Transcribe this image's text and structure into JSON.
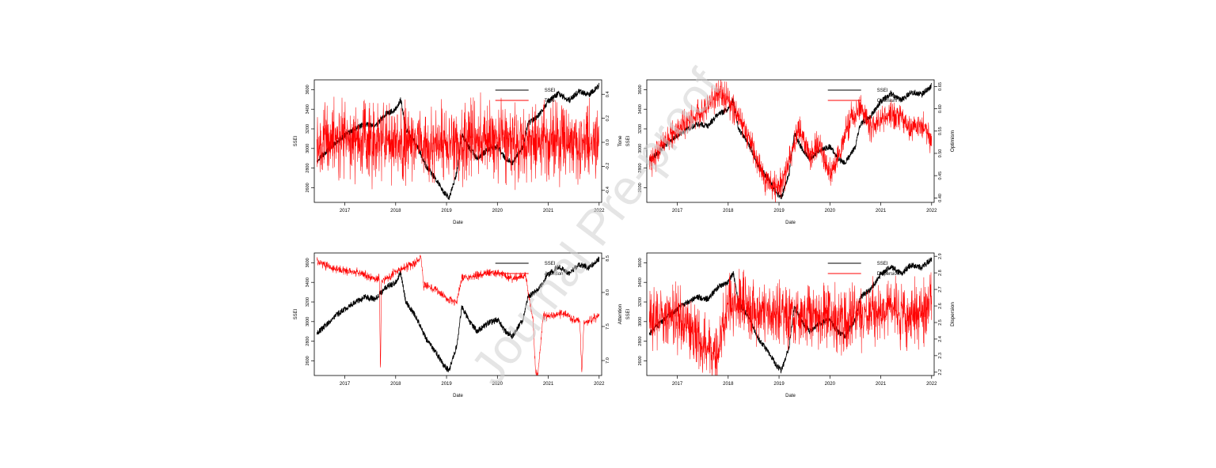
{
  "watermark": "Journal Pre-proof",
  "colors": {
    "ssei": "#000000",
    "sentiment": "#ff0000",
    "axis": "#000000",
    "watermark": "#c8c8c8"
  },
  "chart_data": [
    {
      "type": "line",
      "xlabel": "Date",
      "ylabel_left": "SSEI",
      "ylabel_right": "Tone",
      "x_ticks": [
        "2017",
        "2018",
        "2019",
        "2020",
        "2021",
        "2022"
      ],
      "x_range": [
        2016.4,
        2022.05
      ],
      "y_left_ticks": [
        "2600",
        "2800",
        "3000",
        "3200",
        "3400",
        "3600"
      ],
      "y_left_range": [
        2450,
        3700
      ],
      "y_right_ticks": [
        "-0.4",
        "-0.2",
        "0.0",
        "0.2",
        "0.4"
      ],
      "y_right_range": [
        -0.5,
        0.52
      ],
      "legend": [
        "SSEI",
        "Tone"
      ],
      "legend_position": "top-right",
      "series": [
        {
          "name": "SSEI",
          "color": "#000000",
          "axis": "left",
          "x": [
            2016.45,
            2016.6,
            2016.8,
            2017.0,
            2017.2,
            2017.4,
            2017.6,
            2017.8,
            2018.0,
            2018.1,
            2018.2,
            2018.4,
            2018.6,
            2018.8,
            2018.95,
            2019.05,
            2019.2,
            2019.3,
            2019.45,
            2019.6,
            2019.8,
            2020.0,
            2020.15,
            2020.3,
            2020.5,
            2020.6,
            2020.8,
            2021.0,
            2021.2,
            2021.4,
            2021.6,
            2021.8,
            2022.0
          ],
          "values": [
            2880,
            2950,
            3050,
            3130,
            3200,
            3250,
            3230,
            3350,
            3400,
            3500,
            3200,
            3050,
            2820,
            2680,
            2550,
            2500,
            2750,
            3150,
            3000,
            2900,
            2980,
            3020,
            2900,
            2850,
            3020,
            3250,
            3330,
            3480,
            3560,
            3490,
            3580,
            3550,
            3640
          ]
        },
        {
          "name": "Tone",
          "color": "#ff0000",
          "axis": "right",
          "x": [
            2016.45,
            2017.0,
            2017.5,
            2018.0,
            2018.5,
            2019.0,
            2019.5,
            2020.0,
            2020.5,
            2021.0,
            2021.5,
            2022.0
          ],
          "values": [
            0.0,
            0.02,
            0.0,
            -0.02,
            0.01,
            -0.03,
            0.0,
            0.01,
            -0.01,
            0.02,
            0.0,
            0.01
          ]
        }
      ]
    },
    {
      "type": "line",
      "xlabel": "Date",
      "ylabel_left": "SSEI",
      "ylabel_right": "Optimism",
      "x_ticks": [
        "2017",
        "2018",
        "2019",
        "2020",
        "2021",
        "2022"
      ],
      "x_range": [
        2016.4,
        2022.05
      ],
      "y_left_ticks": [
        "2600",
        "2800",
        "3000",
        "3200",
        "3400",
        "3600"
      ],
      "y_left_range": [
        2450,
        3700
      ],
      "y_right_ticks": [
        "0.40",
        "0.45",
        "0.50",
        "0.55",
        "0.60",
        "0.65"
      ],
      "y_right_range": [
        0.39,
        0.665
      ],
      "legend": [
        "SSEI",
        "Optimism"
      ],
      "legend_position": "top-right",
      "series": [
        {
          "name": "SSEI",
          "color": "#000000",
          "axis": "left",
          "x": [
            2016.45,
            2016.6,
            2016.8,
            2017.0,
            2017.2,
            2017.4,
            2017.6,
            2017.8,
            2018.0,
            2018.1,
            2018.2,
            2018.4,
            2018.6,
            2018.8,
            2018.95,
            2019.05,
            2019.2,
            2019.3,
            2019.45,
            2019.6,
            2019.8,
            2020.0,
            2020.15,
            2020.3,
            2020.5,
            2020.6,
            2020.8,
            2021.0,
            2021.2,
            2021.4,
            2021.6,
            2021.8,
            2022.0
          ],
          "values": [
            2880,
            2950,
            3050,
            3130,
            3200,
            3250,
            3230,
            3350,
            3400,
            3500,
            3200,
            3050,
            2820,
            2680,
            2550,
            2500,
            2750,
            3150,
            3000,
            2900,
            2980,
            3020,
            2900,
            2850,
            3020,
            3250,
            3330,
            3480,
            3560,
            3490,
            3580,
            3550,
            3640
          ]
        },
        {
          "name": "Optimism",
          "color": "#ff0000",
          "axis": "right",
          "x": [
            2016.45,
            2016.7,
            2017.0,
            2017.3,
            2017.6,
            2017.8,
            2018.0,
            2018.2,
            2018.4,
            2018.6,
            2018.8,
            2019.0,
            2019.2,
            2019.4,
            2019.6,
            2019.8,
            2020.0,
            2020.2,
            2020.4,
            2020.6,
            2020.8,
            2021.0,
            2021.2,
            2021.4,
            2021.6,
            2021.8,
            2022.0
          ],
          "values": [
            0.47,
            0.52,
            0.55,
            0.58,
            0.6,
            0.64,
            0.62,
            0.58,
            0.54,
            0.47,
            0.43,
            0.42,
            0.48,
            0.56,
            0.5,
            0.52,
            0.45,
            0.5,
            0.58,
            0.6,
            0.56,
            0.57,
            0.59,
            0.58,
            0.55,
            0.57,
            0.53
          ]
        }
      ]
    },
    {
      "type": "line",
      "xlabel": "Date",
      "ylabel_left": "SSEI",
      "ylabel_right": "Attention",
      "x_ticks": [
        "2017",
        "2018",
        "2019",
        "2020",
        "2021",
        "2022"
      ],
      "x_range": [
        2016.4,
        2022.05
      ],
      "y_left_ticks": [
        "2600",
        "2800",
        "3000",
        "3200",
        "3400",
        "3600"
      ],
      "y_left_range": [
        2450,
        3700
      ],
      "y_right_ticks": [
        "7.0",
        "7.5",
        "8.0",
        "8.5"
      ],
      "y_right_range": [
        6.78,
        8.58
      ],
      "legend": [
        "SSEI",
        "Attention"
      ],
      "legend_position": "top-right",
      "series": [
        {
          "name": "SSEI",
          "color": "#000000",
          "axis": "left",
          "x": [
            2016.45,
            2016.6,
            2016.8,
            2017.0,
            2017.2,
            2017.4,
            2017.6,
            2017.8,
            2018.0,
            2018.1,
            2018.2,
            2018.4,
            2018.6,
            2018.8,
            2018.95,
            2019.05,
            2019.2,
            2019.3,
            2019.45,
            2019.6,
            2019.8,
            2020.0,
            2020.15,
            2020.3,
            2020.5,
            2020.6,
            2020.8,
            2021.0,
            2021.2,
            2021.4,
            2021.6,
            2021.8,
            2022.0
          ],
          "values": [
            2880,
            2950,
            3050,
            3130,
            3200,
            3250,
            3230,
            3350,
            3400,
            3500,
            3200,
            3050,
            2820,
            2680,
            2550,
            2500,
            2750,
            3150,
            3000,
            2900,
            2980,
            3020,
            2900,
            2850,
            3020,
            3250,
            3330,
            3480,
            3560,
            3490,
            3580,
            3550,
            3640
          ]
        },
        {
          "name": "Attention",
          "color": "#ff0000",
          "axis": "right",
          "x": [
            2016.45,
            2016.8,
            2017.2,
            2017.6,
            2017.68,
            2017.7,
            2017.72,
            2018.0,
            2018.3,
            2018.5,
            2018.55,
            2018.8,
            2019.0,
            2019.2,
            2019.3,
            2019.6,
            2020.0,
            2020.3,
            2020.55,
            2020.7,
            2020.75,
            2020.8,
            2020.9,
            2021.0,
            2021.3,
            2021.5,
            2021.62,
            2021.66,
            2021.7,
            2022.0
          ],
          "values": [
            8.45,
            8.35,
            8.3,
            8.2,
            8.2,
            6.82,
            8.15,
            8.3,
            8.4,
            8.5,
            8.1,
            8.05,
            7.9,
            7.85,
            8.2,
            8.25,
            8.3,
            8.2,
            8.25,
            7.6,
            6.82,
            6.82,
            7.65,
            7.65,
            7.7,
            7.6,
            7.6,
            6.82,
            7.55,
            7.65
          ]
        }
      ]
    },
    {
      "type": "line",
      "xlabel": "Date",
      "ylabel_left": "SSEI",
      "ylabel_right": "Dispersion",
      "x_ticks": [
        "2017",
        "2018",
        "2019",
        "2020",
        "2021",
        "2022"
      ],
      "x_range": [
        2016.4,
        2022.05
      ],
      "y_left_ticks": [
        "2600",
        "2800",
        "3000",
        "3200",
        "3400",
        "3600"
      ],
      "y_left_range": [
        2450,
        3700
      ],
      "y_right_ticks": [
        "2.2",
        "2.3",
        "2.4",
        "2.5",
        "2.6",
        "2.7",
        "2.8",
        "2.9"
      ],
      "y_right_range": [
        2.18,
        2.92
      ],
      "legend": [
        "SSEI",
        "Dispersion"
      ],
      "legend_position": "top-right",
      "series": [
        {
          "name": "SSEI",
          "color": "#000000",
          "axis": "left",
          "x": [
            2016.45,
            2016.6,
            2016.8,
            2017.0,
            2017.2,
            2017.4,
            2017.6,
            2017.8,
            2018.0,
            2018.1,
            2018.2,
            2018.4,
            2018.6,
            2018.8,
            2018.95,
            2019.05,
            2019.2,
            2019.3,
            2019.45,
            2019.6,
            2019.8,
            2020.0,
            2020.15,
            2020.3,
            2020.5,
            2020.6,
            2020.8,
            2021.0,
            2021.2,
            2021.4,
            2021.6,
            2021.8,
            2022.0
          ],
          "values": [
            2880,
            2950,
            3050,
            3130,
            3200,
            3250,
            3230,
            3350,
            3400,
            3500,
            3200,
            3050,
            2820,
            2680,
            2550,
            2500,
            2750,
            3150,
            3000,
            2900,
            2980,
            3020,
            2900,
            2850,
            3020,
            3250,
            3330,
            3480,
            3560,
            3490,
            3580,
            3550,
            3640
          ]
        },
        {
          "name": "Dispersion",
          "color": "#ff0000",
          "axis": "right",
          "x": [
            2016.45,
            2016.8,
            2017.2,
            2017.5,
            2017.8,
            2018.0,
            2018.3,
            2018.6,
            2019.0,
            2019.3,
            2019.6,
            2020.0,
            2020.3,
            2020.6,
            2021.0,
            2021.3,
            2021.6,
            2022.0
          ],
          "values": [
            2.5,
            2.55,
            2.52,
            2.35,
            2.3,
            2.6,
            2.6,
            2.58,
            2.55,
            2.52,
            2.55,
            2.52,
            2.5,
            2.55,
            2.55,
            2.58,
            2.55,
            2.6
          ]
        }
      ]
    }
  ]
}
